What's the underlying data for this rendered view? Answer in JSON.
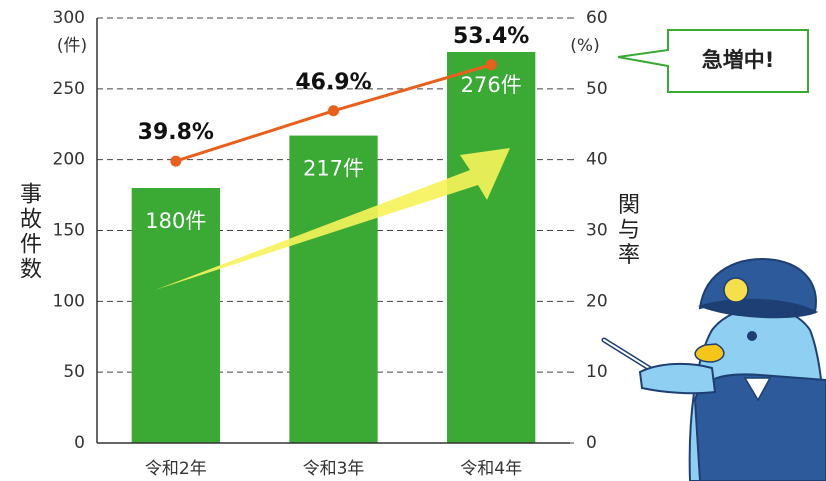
{
  "chart_data": {
    "type": "bar",
    "categories": [
      "令和2年",
      "令和3年",
      "令和4年"
    ],
    "series": [
      {
        "type": "bar",
        "color": "#3aaa35",
        "values": [
          180,
          217,
          276
        ],
        "value_labels": [
          "180件",
          "217件",
          "276件"
        ]
      },
      {
        "type": "line",
        "axis": "y2",
        "color": "#e8601c",
        "values": [
          39.8,
          46.9,
          53.4
        ],
        "value_labels": [
          "39.8%",
          "46.9%",
          "53.4%"
        ]
      }
    ],
    "ylim": [
      0,
      300
    ],
    "yticks": [
      0,
      50,
      100,
      150,
      200,
      250,
      300
    ],
    "y2lim": [
      0,
      60
    ],
    "y2ticks": [
      0,
      10,
      20,
      30,
      40,
      50,
      60
    ],
    "y_unit": "(件)",
    "y2_unit": "(%)",
    "ylabel": "事故件数",
    "y2label": "関与率",
    "annotation": "急増中!",
    "grid": true
  }
}
